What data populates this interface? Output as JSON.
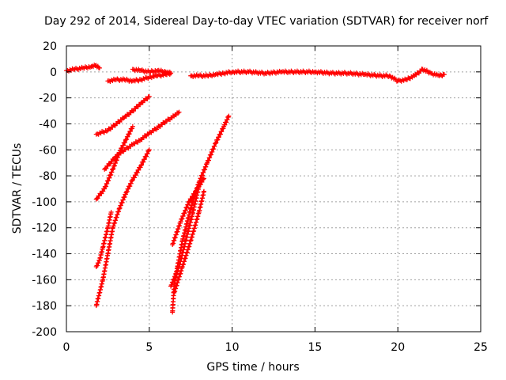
{
  "chart_data": {
    "type": "scatter",
    "title": "Day 292 of 2014, Sidereal Day-to-day VTEC variation (SDTVAR) for receiver norf",
    "xlabel": "GPS time / hours",
    "ylabel": "SDTVAR / TECUs",
    "xlim": [
      0,
      25
    ],
    "ylim": [
      -200,
      20
    ],
    "xticks": [
      "0",
      "5",
      "10",
      "15",
      "20",
      "25"
    ],
    "yticks": [
      "20",
      "0",
      "-20",
      "-40",
      "-60",
      "-80",
      "-100",
      "-120",
      "-140",
      "-160",
      "-180",
      "-200"
    ],
    "grid": true,
    "marker": "+",
    "series": [
      {
        "x": [
          0.0,
          0.5,
          1.0,
          1.5,
          1.8,
          2.0
        ],
        "y": [
          1,
          2,
          3,
          4,
          5,
          3
        ]
      },
      {
        "x": [
          2.5,
          3.0,
          3.5,
          4.0,
          4.5,
          5.0,
          5.5,
          6.0,
          6.3
        ],
        "y": [
          -7,
          -6,
          -6,
          -7,
          -6,
          -4,
          -3,
          -2,
          -1
        ]
      },
      {
        "x": [
          4.0,
          4.5,
          5.0,
          5.5,
          6.0,
          6.3
        ],
        "y": [
          2,
          1,
          0,
          1,
          0,
          -1
        ]
      },
      {
        "x": [
          7.5,
          8.0,
          8.5,
          9.0,
          9.5,
          10.0,
          11.0,
          12.0,
          13.0,
          14.0,
          15.0,
          16.0,
          17.0,
          18.0,
          19.0,
          19.5,
          20.0,
          20.5,
          21.0,
          21.5,
          22.0,
          22.5,
          22.8
        ],
        "y": [
          -3,
          -3,
          -3,
          -2,
          -1,
          0,
          0,
          -1,
          0,
          0,
          0,
          -1,
          -1,
          -2,
          -3,
          -3,
          -7,
          -6,
          -3,
          2,
          -1,
          -3,
          -2
        ]
      },
      {
        "x": [
          1.8,
          2.5,
          3.0,
          3.5,
          4.0,
          4.5,
          5.0
        ],
        "y": [
          -48,
          -45,
          -40,
          -35,
          -30,
          -24,
          -19
        ]
      },
      {
        "x": [
          2.3,
          3.0,
          3.5,
          4.0,
          4.5,
          5.0,
          5.5,
          6.0,
          6.5,
          6.8
        ],
        "y": [
          -75,
          -65,
          -60,
          -56,
          -52,
          -47,
          -43,
          -38,
          -34,
          -31
        ]
      },
      {
        "x": [
          1.8,
          2.3,
          2.8,
          3.2,
          3.6,
          4.0
        ],
        "y": [
          -98,
          -90,
          -75,
          -62,
          -52,
          -42
        ]
      },
      {
        "x": [
          1.8,
          2.2,
          2.5,
          2.8,
          3.2,
          3.6,
          4.0,
          4.5,
          5.0
        ],
        "y": [
          -180,
          -160,
          -140,
          -120,
          -105,
          -93,
          -83,
          -72,
          -60
        ]
      },
      {
        "x": [
          1.8,
          2.0,
          2.2,
          2.5,
          2.7
        ],
        "y": [
          -150,
          -145,
          -135,
          -120,
          -108
        ]
      },
      {
        "x": [
          6.4,
          6.5,
          6.7,
          7.0,
          7.5,
          8.0,
          8.5,
          9.0,
          9.5,
          9.8
        ],
        "y": [
          -185,
          -165,
          -150,
          -130,
          -105,
          -85,
          -70,
          -55,
          -42,
          -34
        ]
      },
      {
        "x": [
          6.3,
          6.8,
          7.2,
          7.6,
          8.0
        ],
        "y": [
          -165,
          -150,
          -130,
          -110,
          -88
        ]
      },
      {
        "x": [
          6.4,
          6.9,
          7.4,
          7.9,
          8.3
        ],
        "y": [
          -133,
          -115,
          -100,
          -90,
          -82
        ]
      },
      {
        "x": [
          6.5,
          7.0,
          7.5,
          8.0,
          8.3
        ],
        "y": [
          -170,
          -150,
          -130,
          -108,
          -92
        ]
      }
    ]
  }
}
